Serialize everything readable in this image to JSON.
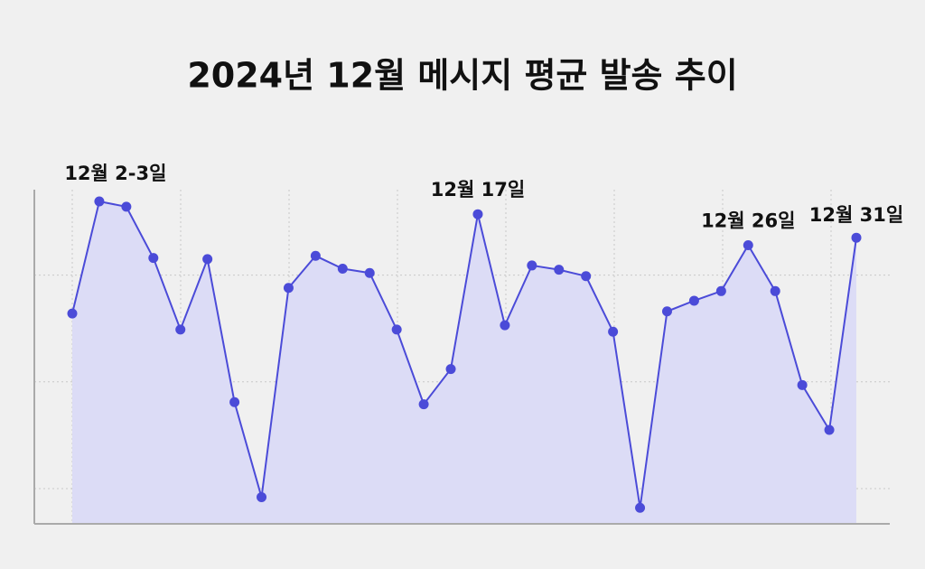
{
  "chart_data": {
    "type": "line",
    "title": "2024년 12월 메시지 평균 발송 추이",
    "categories": [
      null,
      null,
      null,
      null,
      null,
      null,
      null,
      null,
      null,
      null,
      null,
      null,
      null,
      null,
      null,
      null,
      null,
      null,
      null,
      null,
      null,
      null,
      null,
      null,
      null,
      null,
      null,
      null,
      null,
      null
    ],
    "series": [
      {
        "color": "#4b4bd8",
        "values": [
          26.4,
          36.9,
          36.4,
          31.6,
          24.9,
          31.5,
          18.1,
          9.2,
          28.8,
          31.8,
          30.6,
          30.2,
          24.9,
          17.9,
          21.2,
          35.7,
          25.3,
          30.9,
          30.5,
          29.9,
          24.7,
          8.2,
          26.6,
          27.6,
          28.5,
          32.8,
          28.5,
          19.7,
          15.5,
          33.5
        ]
      }
    ],
    "annotations": [
      "12월 2-3일",
      "12월 17일",
      "12월 26일",
      "12월 31일"
    ],
    "ylim": [
      6.7,
      38
    ],
    "yticks": [
      10,
      20,
      30
    ],
    "grid": true,
    "fill": "#dcdcf6"
  }
}
